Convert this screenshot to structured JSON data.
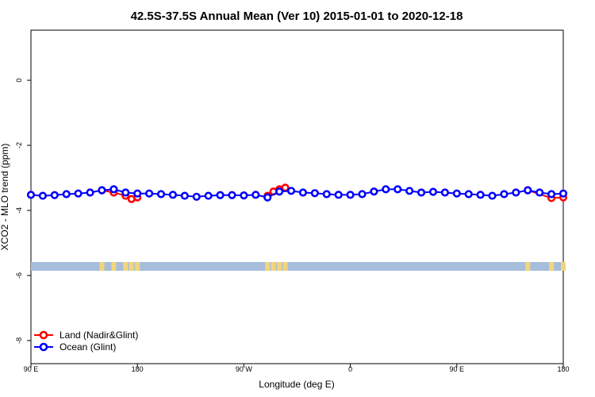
{
  "chart_data": {
    "type": "line",
    "title": "42.5S-37.5S Annual Mean (Ver 10)   2015-01-01 to 2020-12-18",
    "x_label": "Longitude (deg E)",
    "y_label": "XCO2 - MLO trend (ppm)",
    "xlim": [
      90,
      540
    ],
    "ylim": [
      -8.71,
      1.54
    ],
    "xticks": [
      {
        "value": 90,
        "label": "90 E"
      },
      180,
      {
        "value": 270,
        "label": "90 W"
      },
      {
        "value": 360,
        "label": "0"
      },
      {
        "value": 450,
        "label": "90 E"
      },
      {
        "value": 540,
        "label": "180"
      }
    ],
    "yticks": [
      0,
      -2,
      -4,
      -6,
      -8
    ],
    "legend": "bottom-left",
    "series": [
      {
        "name": "Land (Nadir&Glint)",
        "color": "#ff0000",
        "x": [
          150,
          160,
          170,
          175,
          180,
          200,
          290,
          295,
          300,
          305,
          400,
          510,
          530,
          540
        ],
        "values": [
          -3.38,
          -3.45,
          -3.55,
          -3.65,
          -3.6,
          null,
          -3.55,
          -3.42,
          -3.35,
          -3.3,
          null,
          -3.38,
          -3.62,
          -3.6
        ]
      },
      {
        "name": "Ocean (Glint)",
        "color": "#0000ff",
        "x": [
          90,
          100,
          110,
          120,
          130,
          140,
          150,
          160,
          170,
          180,
          190,
          200,
          210,
          220,
          230,
          240,
          250,
          260,
          270,
          280,
          290,
          300,
          310,
          320,
          330,
          340,
          350,
          360,
          370,
          380,
          390,
          400,
          410,
          420,
          430,
          440,
          450,
          460,
          470,
          480,
          490,
          500,
          510,
          520,
          530,
          540
        ],
        "values": [
          -3.52,
          -3.55,
          -3.53,
          -3.5,
          -3.48,
          -3.45,
          -3.38,
          -3.35,
          -3.45,
          -3.48,
          -3.48,
          -3.5,
          -3.52,
          -3.55,
          -3.58,
          -3.55,
          -3.53,
          -3.53,
          -3.54,
          -3.52,
          -3.6,
          -3.42,
          -3.4,
          -3.45,
          -3.47,
          -3.5,
          -3.52,
          -3.52,
          -3.5,
          -3.42,
          -3.35,
          -3.35,
          -3.4,
          -3.45,
          -3.43,
          -3.45,
          -3.48,
          -3.5,
          -3.52,
          -3.55,
          -3.5,
          -3.45,
          -3.38,
          -3.45,
          -3.5,
          -3.48
        ]
      }
    ]
  }
}
